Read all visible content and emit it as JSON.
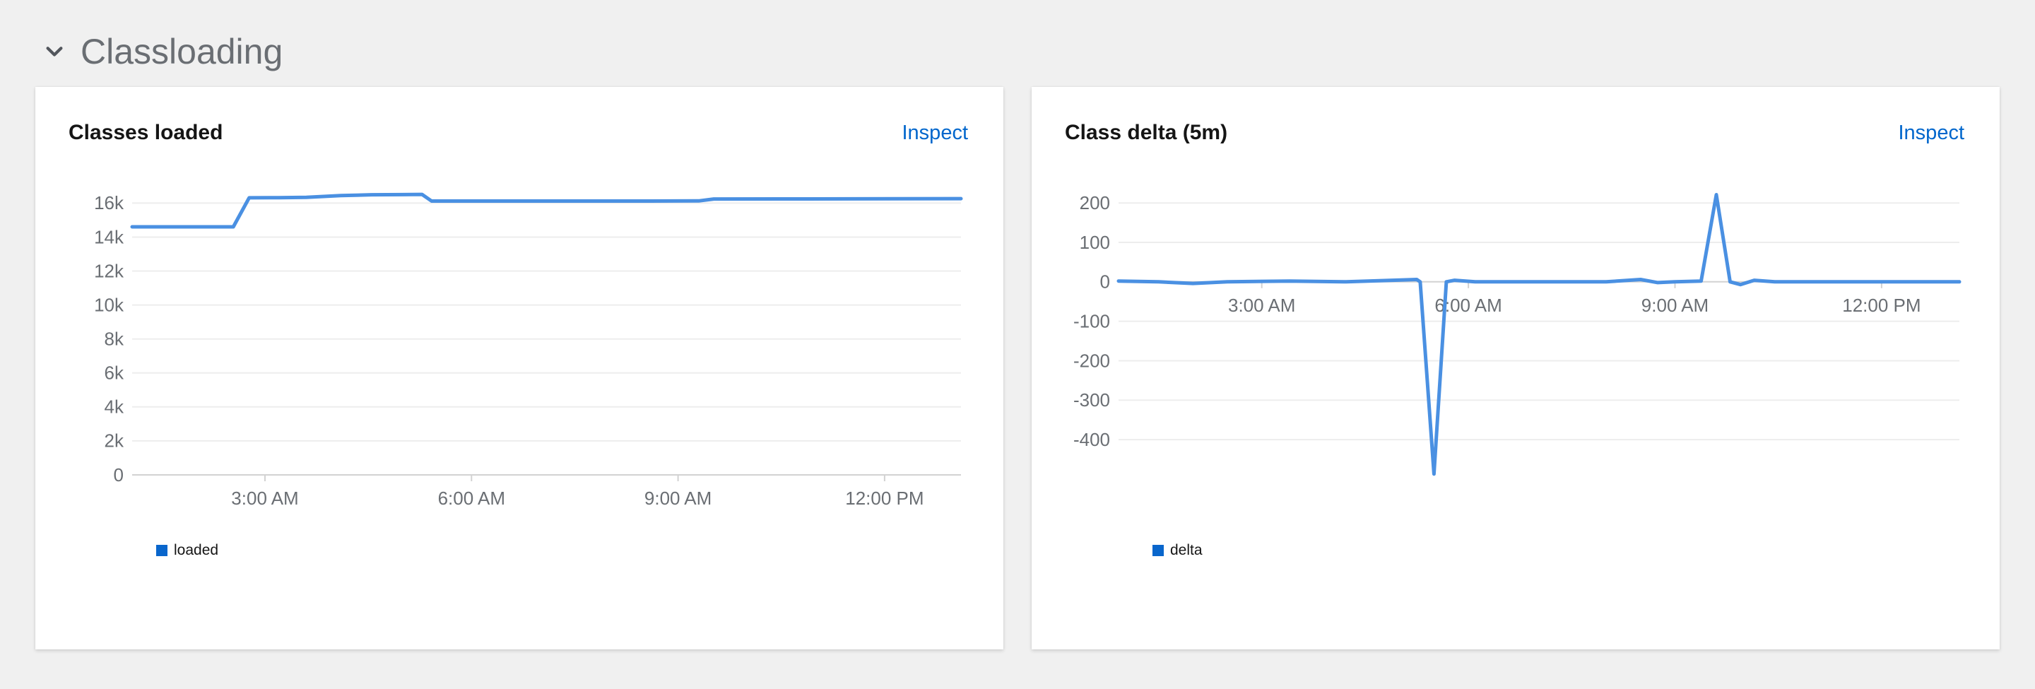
{
  "page": {
    "section_title": "Classloading"
  },
  "colors": {
    "accent_link": "#0066cc",
    "line_blue": "#4a90e2",
    "legend_blue": "#0966cc",
    "grid_minor": "#ededed",
    "grid_axis": "#d2d2d2",
    "tick_text": "#6a6e73"
  },
  "chart_data": [
    {
      "id": "classes-loaded",
      "type": "line",
      "title": "Classes loaded",
      "inspect_label": "Inspect",
      "xlabel": "",
      "ylabel": "",
      "x_unit": "hours-since-midnight",
      "xlim": [
        1.07,
        13.11
      ],
      "ylim": [
        0,
        16640
      ],
      "axis_at": 0,
      "grid": true,
      "legend_position": "bottom-left",
      "legend_color": "#0966cc",
      "x_ticks": [
        {
          "value": 3,
          "label": "3:00 AM"
        },
        {
          "value": 6,
          "label": "6:00 AM"
        },
        {
          "value": 9,
          "label": "9:00 AM"
        },
        {
          "value": 12,
          "label": "12:00 PM"
        }
      ],
      "y_ticks": [
        {
          "value": 0,
          "label": "0"
        },
        {
          "value": 2000,
          "label": "2k"
        },
        {
          "value": 4000,
          "label": "4k"
        },
        {
          "value": 6000,
          "label": "6k"
        },
        {
          "value": 8000,
          "label": "8k"
        },
        {
          "value": 10000,
          "label": "10k"
        },
        {
          "value": 12000,
          "label": "12k"
        },
        {
          "value": 14000,
          "label": "14k"
        },
        {
          "value": 16000,
          "label": "16k"
        }
      ],
      "series": [
        {
          "name": "loaded",
          "color": "#4a90e2",
          "points": [
            [
              1.07,
              14600
            ],
            [
              2.2,
              14600
            ],
            [
              2.54,
              14600
            ],
            [
              2.77,
              16310
            ],
            [
              3.2,
              16320
            ],
            [
              3.6,
              16340
            ],
            [
              4.1,
              16440
            ],
            [
              4.55,
              16490
            ],
            [
              5.0,
              16500
            ],
            [
              5.28,
              16510
            ],
            [
              5.42,
              16120
            ],
            [
              6.5,
              16120
            ],
            [
              7.6,
              16120
            ],
            [
              8.6,
              16120
            ],
            [
              9.3,
              16130
            ],
            [
              9.52,
              16240
            ],
            [
              10.5,
              16245
            ],
            [
              11.5,
              16250
            ],
            [
              13.11,
              16260
            ]
          ]
        }
      ]
    },
    {
      "id": "class-delta-5m",
      "type": "line",
      "title": "Class delta (5m)",
      "inspect_label": "Inspect",
      "xlabel": "",
      "ylabel": "",
      "x_unit": "hours-since-midnight",
      "xlim": [
        0.92,
        13.13
      ],
      "ylim": [
        -450,
        229
      ],
      "axis_at": 0,
      "grid": true,
      "legend_position": "bottom-left",
      "legend_color": "#0966cc",
      "x_ticks": [
        {
          "value": 3,
          "label": "3:00 AM"
        },
        {
          "value": 6,
          "label": "6:00 AM"
        },
        {
          "value": 9,
          "label": "9:00 AM"
        },
        {
          "value": 12,
          "label": "12:00 PM"
        }
      ],
      "y_ticks": [
        {
          "value": 200,
          "label": "200"
        },
        {
          "value": 100,
          "label": "100"
        },
        {
          "value": 0,
          "label": "0"
        },
        {
          "value": -100,
          "label": "-100"
        },
        {
          "value": -200,
          "label": "-200"
        },
        {
          "value": -300,
          "label": "-300"
        },
        {
          "value": -400,
          "label": "-400"
        }
      ],
      "series": [
        {
          "name": "delta",
          "color": "#4a90e2",
          "points": [
            [
              0.92,
              2
            ],
            [
              1.5,
              0
            ],
            [
              2.0,
              -4
            ],
            [
              2.5,
              0
            ],
            [
              3.4,
              2
            ],
            [
              4.2,
              0
            ],
            [
              4.9,
              4
            ],
            [
              5.25,
              6
            ],
            [
              5.3,
              0
            ],
            [
              5.5,
              -487
            ],
            [
              5.68,
              0
            ],
            [
              5.8,
              4
            ],
            [
              6.1,
              0
            ],
            [
              7.0,
              0
            ],
            [
              8.0,
              0
            ],
            [
              8.5,
              6
            ],
            [
              8.75,
              -2
            ],
            [
              9.0,
              0
            ],
            [
              9.38,
              2
            ],
            [
              9.6,
              221
            ],
            [
              9.8,
              0
            ],
            [
              9.95,
              -7
            ],
            [
              10.15,
              4
            ],
            [
              10.45,
              0
            ],
            [
              11.5,
              0
            ],
            [
              13.13,
              0
            ]
          ]
        }
      ]
    }
  ]
}
